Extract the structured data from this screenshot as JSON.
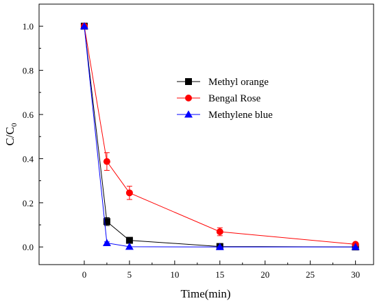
{
  "chart_data": {
    "type": "line",
    "title": "",
    "xlabel": "Time(min)",
    "ylabel_main": "C/C",
    "ylabel_sub": "0",
    "x_ticks": [
      "0",
      "5",
      "10",
      "15",
      "20",
      "25",
      "30"
    ],
    "y_ticks": [
      "0.0",
      "0.2",
      "0.4",
      "0.6",
      "0.8",
      "1.0"
    ],
    "xlim": [
      -5,
      32
    ],
    "ylim": [
      -0.08,
      1.1
    ],
    "grid": false,
    "legend_position": "center-right",
    "series": [
      {
        "name": "Methyl orange",
        "color": "#000000",
        "marker": "square",
        "x": [
          0,
          2.5,
          5,
          15,
          30
        ],
        "y": [
          1.0,
          0.115,
          0.03,
          0.002,
          0.0
        ],
        "err": [
          0.0,
          0.018,
          0.005,
          0.004,
          0.0
        ]
      },
      {
        "name": "Bengal Rose",
        "color": "#ff0000",
        "marker": "circle",
        "x": [
          0,
          2.5,
          5,
          15,
          30
        ],
        "y": [
          1.0,
          0.387,
          0.245,
          0.069,
          0.012
        ],
        "err": [
          0.0,
          0.04,
          0.03,
          0.018,
          0.005
        ]
      },
      {
        "name": "Methylene blue",
        "color": "#0000ff",
        "marker": "triangle",
        "x": [
          0,
          2.5,
          5,
          15,
          30
        ],
        "y": [
          1.0,
          0.018,
          0.001,
          0.0,
          0.0
        ],
        "err": [
          0.0,
          0.005,
          0.0,
          0.0,
          0.0
        ]
      }
    ]
  }
}
